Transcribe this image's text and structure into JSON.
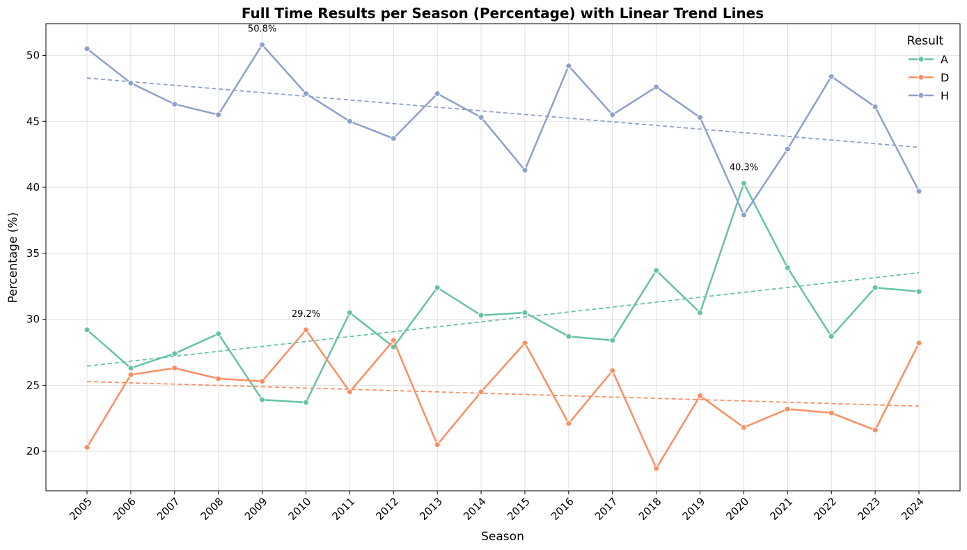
{
  "chart_data": {
    "type": "line",
    "title": "Full Time Results per Season (Percentage) with Linear Trend Lines",
    "xlabel": "Season",
    "ylabel": "Percentage (%)",
    "x": [
      "2005",
      "2006",
      "2007",
      "2008",
      "2009",
      "2010",
      "2011",
      "2012",
      "2013",
      "2014",
      "2015",
      "2016",
      "2017",
      "2018",
      "2019",
      "2020",
      "2021",
      "2022",
      "2023",
      "2024"
    ],
    "ylim": [
      17,
      52.4
    ],
    "yticks": [
      20,
      25,
      30,
      35,
      40,
      45,
      50
    ],
    "grid": true,
    "legend": {
      "title": "Result",
      "placement": "top-right"
    },
    "series": [
      {
        "name": "A",
        "color": "#66c2a5",
        "values": [
          29.2,
          26.3,
          27.4,
          28.9,
          23.9,
          23.7,
          30.5,
          27.9,
          32.4,
          30.3,
          30.5,
          28.7,
          28.4,
          33.7,
          30.5,
          40.3,
          33.9,
          28.7,
          32.4,
          32.1
        ],
        "trend": [
          26.45,
          33.53
        ]
      },
      {
        "name": "D",
        "color": "#fc8d62",
        "values": [
          20.3,
          25.8,
          26.3,
          25.5,
          25.3,
          29.2,
          24.5,
          28.4,
          20.5,
          24.5,
          28.2,
          22.1,
          26.1,
          18.7,
          24.2,
          21.8,
          23.2,
          22.9,
          21.6,
          28.2
        ],
        "trend": [
          25.28,
          23.42
        ]
      },
      {
        "name": "H",
        "color": "#8da0cb",
        "values": [
          50.5,
          47.9,
          46.3,
          45.5,
          50.8,
          47.1,
          45.0,
          43.7,
          47.1,
          45.3,
          41.3,
          49.2,
          45.5,
          47.6,
          45.3,
          37.9,
          42.9,
          48.4,
          46.1,
          39.7
        ],
        "trend": [
          48.28,
          43.03
        ]
      }
    ],
    "annotations": [
      {
        "x": "2009",
        "y": 50.8,
        "text": "50.8%"
      },
      {
        "x": "2010",
        "y": 29.2,
        "text": "29.2%"
      },
      {
        "x": "2020",
        "y": 40.3,
        "text": "40.3%"
      }
    ]
  }
}
